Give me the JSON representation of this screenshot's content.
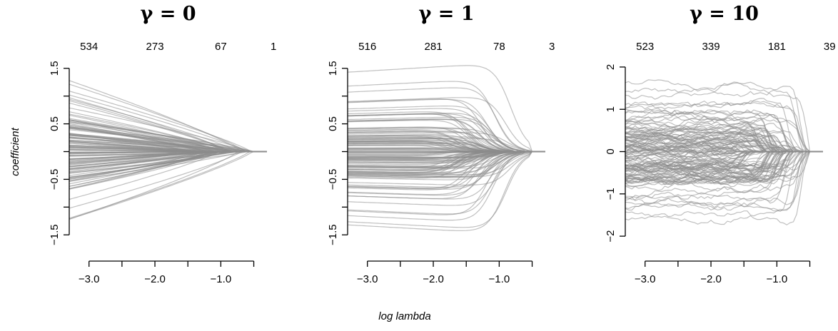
{
  "figure": {
    "shared_xlabel": "log lambda",
    "shared_ylabel": "coefficient"
  },
  "chart_data": [
    {
      "type": "line",
      "title": "γ = 0",
      "gamma": 0,
      "xlabel": "log lambda",
      "ylabel": "coefficient",
      "xlim": [
        -3.3,
        -0.3
      ],
      "ylim": [
        -1.6,
        1.6
      ],
      "xticks": [
        -3.0,
        -2.5,
        -2.0,
        -1.5,
        -1.0,
        -0.5
      ],
      "xtick_labels": [
        "-3.0",
        "",
        "-2.0",
        "",
        "-1.0",
        ""
      ],
      "yticks": [
        -1.5,
        -1.0,
        -0.5,
        0.0,
        0.5,
        1.0,
        1.5
      ],
      "ytick_labels": [
        "-1.5",
        "",
        "-0.5",
        "",
        "0.5",
        "",
        "1.5"
      ],
      "top_axis": {
        "ticks": [
          -3.0,
          -2.0,
          -1.0,
          -0.2
        ],
        "labels": [
          "534",
          "273",
          "67",
          "1"
        ]
      },
      "path_profile": {
        "shape": "smooth-shrink",
        "x_start": -3.3,
        "x_end": -0.3,
        "zero_at": -0.45,
        "extreme_starts": [
          1.28,
          1.02,
          0.97,
          -1.02,
          -1.22
        ],
        "series_count": 130
      },
      "grid": false
    },
    {
      "type": "line",
      "title": "γ = 1",
      "gamma": 1,
      "xlabel": "log lambda",
      "ylabel": "coefficient",
      "xlim": [
        -3.3,
        -0.3
      ],
      "ylim": [
        -1.6,
        1.6
      ],
      "xticks": [
        -3.0,
        -2.5,
        -2.0,
        -1.5,
        -1.0,
        -0.5
      ],
      "xtick_labels": [
        "-3.0",
        "",
        "-2.0",
        "",
        "-1.0",
        ""
      ],
      "yticks": [
        -1.5,
        -1.0,
        -0.5,
        0.0,
        0.5,
        1.0,
        1.5
      ],
      "ytick_labels": [
        "-1.5",
        "",
        "-0.5",
        "",
        "0.5",
        "",
        "1.5"
      ],
      "top_axis": {
        "ticks": [
          -3.0,
          -2.0,
          -1.0,
          -0.2
        ],
        "labels": [
          "516",
          "281",
          "78",
          "3"
        ]
      },
      "path_profile": {
        "shape": "plateau-then-drop",
        "x_start": -3.3,
        "x_end": -0.3,
        "zero_at": -0.5,
        "extreme_starts": [
          1.43,
          1.18,
          -1.05,
          -1.32
        ],
        "series_count": 130
      },
      "grid": false
    },
    {
      "type": "line",
      "title": "γ = 10",
      "gamma": 10,
      "xlabel": "log lambda",
      "ylabel": "coefficient",
      "xlim": [
        -3.3,
        -0.3
      ],
      "ylim": [
        -2.1,
        2.1
      ],
      "xticks": [
        -3.0,
        -2.5,
        -2.0,
        -1.5,
        -1.0,
        -0.5
      ],
      "xtick_labels": [
        "-3.0",
        "",
        "-2.0",
        "",
        "-1.0",
        ""
      ],
      "yticks": [
        -2,
        -1,
        0,
        1,
        2
      ],
      "ytick_labels": [
        "-2",
        "-1",
        "0",
        "1",
        "2"
      ],
      "top_axis": {
        "ticks": [
          -3.0,
          -2.0,
          -1.0,
          -0.2
        ],
        "labels": [
          "523",
          "339",
          "181",
          "39"
        ]
      },
      "path_profile": {
        "shape": "noisy-hard-threshold",
        "x_start": -3.3,
        "x_end": -0.3,
        "zero_at": -0.5,
        "extreme_starts": [
          1.65,
          1.4,
          -1.45,
          -1.65
        ],
        "series_count": 130
      },
      "grid": false
    }
  ]
}
